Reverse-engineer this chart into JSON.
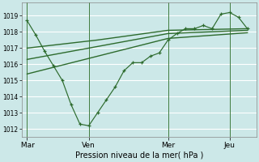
{
  "xlabel": "Pression niveau de la mer( hPa )",
  "bg_color": "#cce8e8",
  "grid_color": "#ffffff",
  "line_color": "#2d6b2d",
  "ylim": [
    1011.5,
    1019.8
  ],
  "yticks": [
    1012,
    1013,
    1014,
    1015,
    1016,
    1017,
    1018,
    1019
  ],
  "xtick_labels": [
    " Mar",
    "Ven",
    "Mer",
    "Jeu"
  ],
  "xtick_positions": [
    0,
    3.5,
    8,
    11.5
  ],
  "xlim": [
    -0.3,
    13.0
  ],
  "series1_x": [
    0,
    0.5,
    1.0,
    1.5,
    2.0,
    2.5,
    3.0,
    3.5,
    4.0,
    4.5,
    5.0,
    5.5,
    6.0,
    6.5,
    7.0,
    7.5,
    8.0,
    8.5,
    9.0,
    9.5,
    10.0,
    10.5,
    11.0,
    11.5,
    12.0,
    12.5
  ],
  "series1_y": [
    1018.7,
    1017.8,
    1016.8,
    1015.9,
    1015.0,
    1013.5,
    1012.3,
    1012.2,
    1013.0,
    1013.8,
    1014.6,
    1015.6,
    1016.1,
    1016.1,
    1016.5,
    1016.7,
    1017.5,
    1017.9,
    1018.2,
    1018.2,
    1018.4,
    1018.2,
    1019.1,
    1019.2,
    1018.9,
    1018.2
  ],
  "series2_x": [
    0,
    4,
    8,
    12.5
  ],
  "series2_y": [
    1017.0,
    1017.5,
    1018.1,
    1018.2
  ],
  "series3_x": [
    0,
    4,
    8,
    12.5
  ],
  "series3_y": [
    1016.3,
    1017.1,
    1017.9,
    1018.1
  ],
  "series4_x": [
    0,
    4,
    8,
    12.5
  ],
  "series4_y": [
    1015.4,
    1016.5,
    1017.6,
    1017.95
  ],
  "vline_positions": [
    0,
    3.5,
    8.0,
    11.5
  ],
  "vline_color": "#3d7a3d"
}
